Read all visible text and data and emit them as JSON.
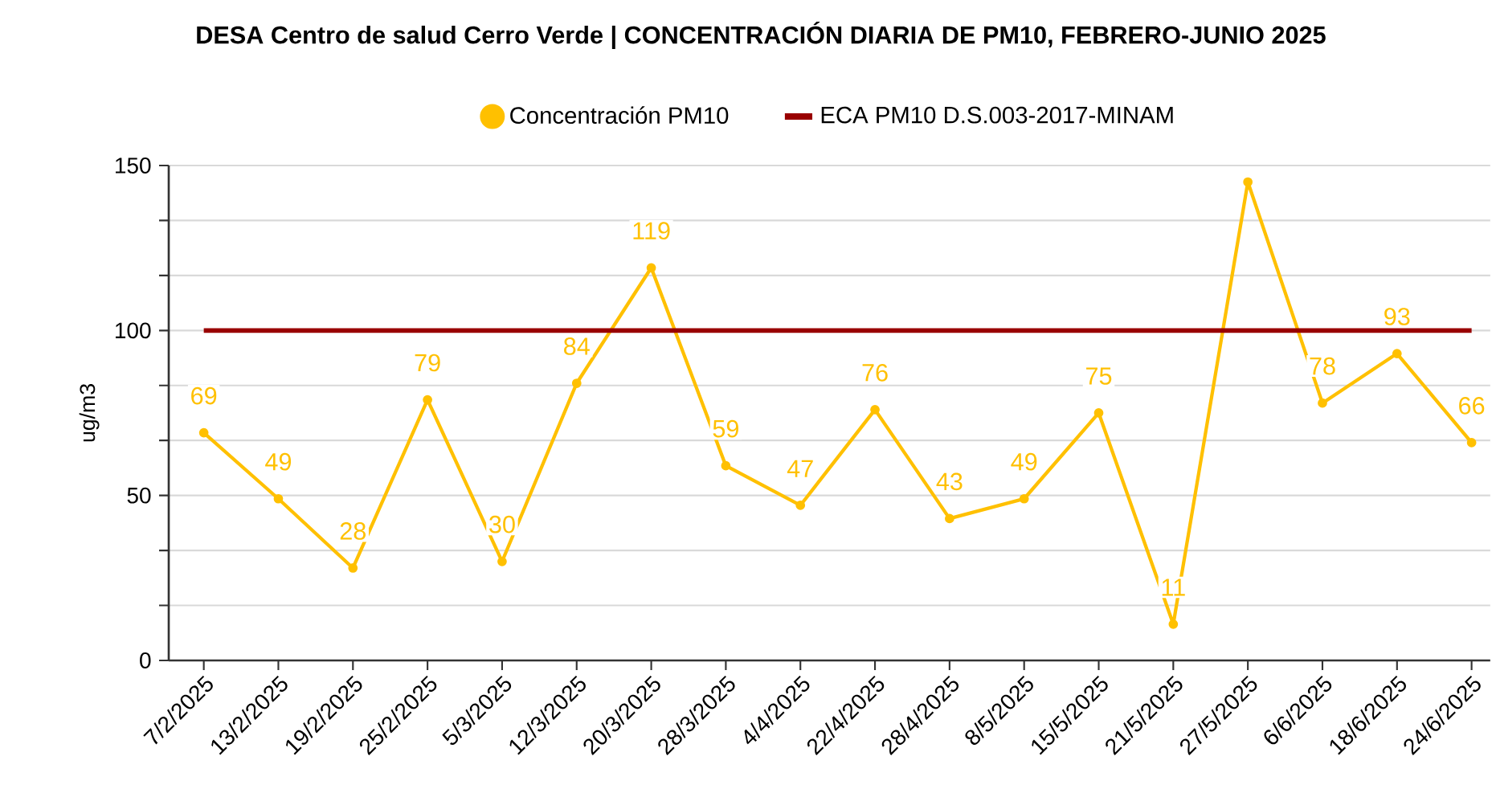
{
  "chart_data": {
    "type": "line",
    "title": "DESA Centro de salud Cerro Verde | CONCENTRACIÓN DIARIA DE PM10, FEBRERO-JUNIO 2025",
    "ylabel": "ug/m3",
    "categories": [
      "7/2/2025",
      "13/2/2025",
      "19/2/2025",
      "25/2/2025",
      "5/3/2025",
      "12/3/2025",
      "20/3/2025",
      "28/3/2025",
      "4/4/2025",
      "22/4/2025",
      "28/4/2025",
      "8/5/2025",
      "15/5/2025",
      "21/5/2025",
      "27/5/2025",
      "6/6/2025",
      "18/6/2025",
      "24/6/2025"
    ],
    "series": [
      {
        "name": "Concentración PM10",
        "color": "#ffc000",
        "marker": "circle",
        "values": [
          69,
          49,
          28,
          79,
          30,
          84,
          119,
          59,
          47,
          76,
          43,
          49,
          75,
          11,
          145,
          78,
          93,
          66
        ],
        "value_labels": [
          "69",
          "49",
          "28",
          "79",
          "30",
          "84",
          "119",
          "59",
          "47",
          "76",
          "43",
          "49",
          "75",
          "11",
          null,
          "78",
          "93",
          "66"
        ]
      },
      {
        "name": "ECA PM10 D.S.003-2017-MINAM",
        "color": "#990000",
        "marker": "none",
        "values": [
          100,
          100,
          100,
          100,
          100,
          100,
          100,
          100,
          100,
          100,
          100,
          100,
          100,
          100,
          100,
          100,
          100,
          100
        ]
      }
    ],
    "ylim": [
      0,
      150
    ],
    "yticks": [
      0,
      {
        "value": 16.67,
        "label": null
      },
      {
        "value": 33.33,
        "label": null
      },
      50,
      {
        "value": 66.67,
        "label": null
      },
      {
        "value": 83.33,
        "label": null
      },
      100,
      {
        "value": 116.67,
        "label": null
      },
      {
        "value": 133.33,
        "label": null
      },
      150
    ],
    "grid": "y",
    "legend": "top"
  }
}
